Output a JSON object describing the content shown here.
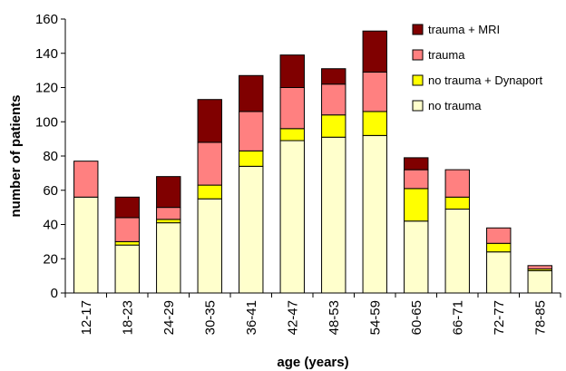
{
  "chart_data": {
    "type": "bar",
    "stacked": true,
    "categories": [
      "12-17",
      "18-23",
      "24-29",
      "30-35",
      "36-41",
      "42-47",
      "48-53",
      "54-59",
      "60-65",
      "66-71",
      "72-77",
      "78-85"
    ],
    "series": [
      {
        "name": "no trauma",
        "color": "#ffffcc",
        "values": [
          56,
          28,
          41,
          55,
          74,
          89,
          91,
          92,
          42,
          49,
          24,
          13
        ]
      },
      {
        "name": "no trauma + Dynaport",
        "color": "#ffff00",
        "values": [
          0,
          2,
          2,
          8,
          9,
          7,
          13,
          14,
          19,
          7,
          5,
          1
        ]
      },
      {
        "name": "trauma",
        "color": "#ff8080",
        "values": [
          21,
          14,
          7,
          25,
          23,
          24,
          18,
          23,
          11,
          16,
          9,
          2
        ]
      },
      {
        "name": "trauma + MRI",
        "color": "#800000",
        "values": [
          0,
          12,
          18,
          25,
          21,
          19,
          9,
          24,
          7,
          0,
          0,
          0
        ]
      }
    ],
    "xlabel": "age (years)",
    "ylabel": "number of patients",
    "ylim": [
      0,
      160
    ],
    "yticks": [
      "0",
      "20",
      "40",
      "60",
      "80",
      "100",
      "120",
      "140",
      "160"
    ],
    "legend_position": "top-right",
    "grid": false
  }
}
